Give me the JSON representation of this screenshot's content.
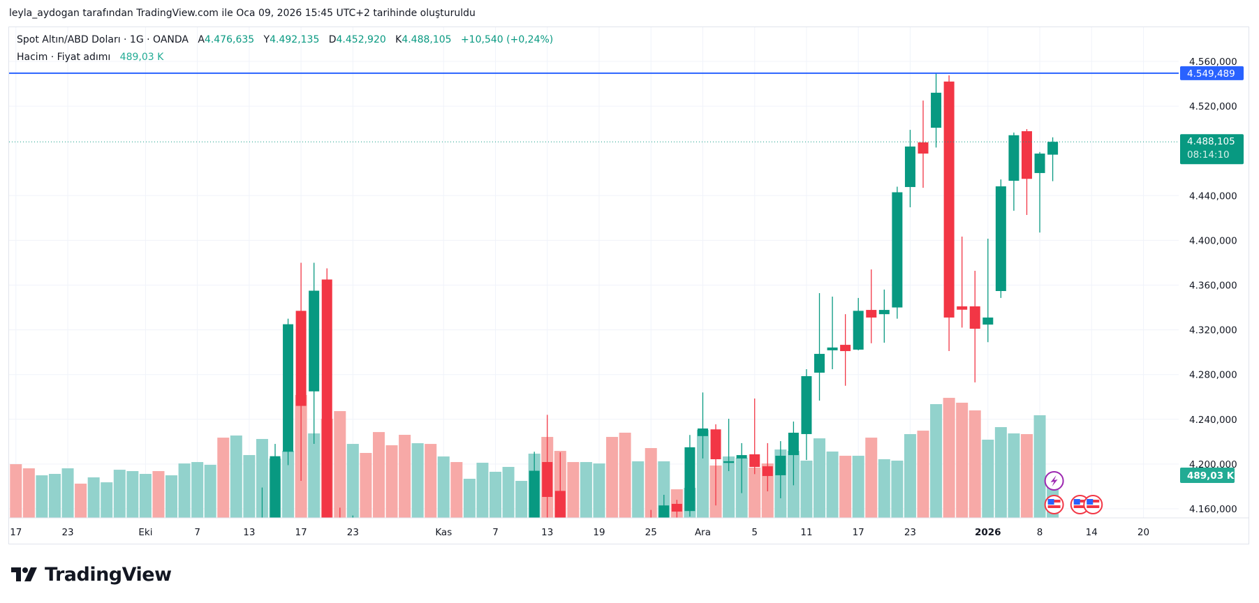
{
  "title": "leyla_aydogan tarafından TradingView.com ile Oca 09, 2026 15:45 UTC+2 tarihinde oluşturuldu",
  "header": {
    "symbol": "Spot Altın/ABD Doları · 1G · OANDA",
    "open_label": "A",
    "open": "4.476,635",
    "high_label": "Y",
    "high": "4.492,135",
    "low_label": "D",
    "low": "4.452,920",
    "close_label": "K",
    "close": "4.488,105",
    "change": "+10,540 (+0,24%)",
    "volume_label": "Hacim · Fiyat adımı",
    "volume_value": "489,03 K"
  },
  "price_axis": {
    "ticks": [
      "4.560,000",
      "4.520,000",
      "4.440,000",
      "4.400,000",
      "4.360,000",
      "4.320,000",
      "4.280,000",
      "4.240,000",
      "4.200,000",
      "4.160,000"
    ],
    "tick_values": [
      4560,
      4520,
      4440,
      4400,
      4360,
      4320,
      4280,
      4240,
      4200,
      4160
    ],
    "horizontal_line": {
      "value": 4549.489,
      "label": "4.549,489",
      "color": "#2962ff"
    },
    "last_price": {
      "value": 4488.105,
      "label": "4.488,105",
      "countdown": "08:14:10",
      "color": "#089981"
    },
    "volume_badge": {
      "label": "489,03 K",
      "color": "#22ab94"
    }
  },
  "time_axis": {
    "ticks": [
      {
        "label": "17",
        "bar": 0
      },
      {
        "label": "23",
        "bar": 4
      },
      {
        "label": "Eki",
        "bar": 10
      },
      {
        "label": "7",
        "bar": 14
      },
      {
        "label": "13",
        "bar": 18
      },
      {
        "label": "17",
        "bar": 22
      },
      {
        "label": "23",
        "bar": 26
      },
      {
        "label": "Kas",
        "bar": 33
      },
      {
        "label": "7",
        "bar": 37
      },
      {
        "label": "13",
        "bar": 41
      },
      {
        "label": "19",
        "bar": 45
      },
      {
        "label": "25",
        "bar": 49
      },
      {
        "label": "Ara",
        "bar": 53
      },
      {
        "label": "5",
        "bar": 57
      },
      {
        "label": "11",
        "bar": 61
      },
      {
        "label": "17",
        "bar": 65
      },
      {
        "label": "23",
        "bar": 69
      },
      {
        "label": "2026",
        "bar": 75,
        "bold": true
      },
      {
        "label": "8",
        "bar": 79
      },
      {
        "label": "14",
        "bar": 83
      },
      {
        "label": "20",
        "bar": 87
      }
    ]
  },
  "events": [
    {
      "icon": "lightning-icon",
      "bar": 80,
      "row": 0,
      "color": "#9c27b0"
    },
    {
      "icon": "us-flag-icon",
      "bar": 80,
      "row": 1
    },
    {
      "icon": "us-flag-icon",
      "bar": 82,
      "row": 1
    },
    {
      "icon": "us-flag-icon",
      "bar": 83,
      "row": 1
    }
  ],
  "branding": "TradingView",
  "chart_data": {
    "type": "candlestick",
    "price_range": [
      4145,
      4590
    ],
    "grid": true,
    "colors": {
      "up": "#089981",
      "down": "#f23645",
      "volume_up": "#92d2cc",
      "volume_down": "#f7a9a7"
    },
    "ohlc": [
      null,
      null,
      null,
      null,
      null,
      null,
      null,
      null,
      null,
      null,
      null,
      null,
      null,
      null,
      null,
      null,
      null,
      null,
      null,
      [
        4110,
        4179,
        4100,
        4142
      ],
      [
        4142,
        4218,
        4140,
        4207
      ],
      [
        4211,
        4330,
        4199,
        4325
      ],
      [
        4337,
        4380,
        4185,
        4252
      ],
      [
        4265,
        4380,
        4218,
        4355
      ],
      [
        4365,
        4375,
        4120,
        4130
      ],
      [
        4140,
        4161,
        4050,
        4100
      ],
      [
        4100,
        4154,
        4060,
        4120
      ],
      null,
      null,
      null,
      null,
      null,
      null,
      null,
      null,
      null,
      null,
      null,
      null,
      null,
      [
        4100,
        4211,
        4090,
        4194
      ],
      [
        4201.8,
        4244,
        4150,
        4170.6
      ],
      [
        4176,
        4210.5,
        4040,
        4080
      ],
      null,
      null,
      null,
      null,
      null,
      null,
      [
        4120,
        4159,
        4050,
        4080
      ],
      [
        4100,
        4172.5,
        4090,
        4163
      ],
      [
        4164.4,
        4168,
        4140,
        4157.5
      ],
      [
        4158,
        4226,
        4153,
        4215
      ],
      [
        4225,
        4264,
        4205,
        4231.8
      ],
      [
        4231,
        4235.5,
        4163,
        4204.3
      ],
      [
        4201,
        4240.5,
        4193.7,
        4202.5
      ],
      [
        4205,
        4218.7,
        4174,
        4208
      ],
      [
        4208.7,
        4258.6,
        4191,
        4197.4
      ],
      [
        4198,
        4218.7,
        4175.6,
        4189.3
      ],
      [
        4190,
        4220.5,
        4169.4,
        4207.4
      ],
      [
        4208,
        4238,
        4181,
        4228
      ],
      [
        4226.8,
        4284.8,
        4203.7,
        4278.6
      ],
      [
        4281.7,
        4352.8,
        4256.7,
        4298.5
      ],
      [
        4301.7,
        4349.7,
        4284.8,
        4304.2
      ],
      [
        4306.6,
        4334,
        4270,
        4301
      ],
      [
        4302.3,
        4348.5,
        4301.7,
        4337
      ],
      [
        4337.8,
        4374,
        4308,
        4331
      ],
      [
        4334,
        4356,
        4308.5,
        4337.8
      ],
      [
        4340,
        4448,
        4330,
        4443
      ],
      [
        4447.7,
        4498.8,
        4429.6,
        4483.9
      ],
      [
        4487.6,
        4525,
        4447,
        4477.6
      ],
      [
        4500.7,
        4549.4,
        4483,
        4532
      ],
      [
        4542,
        4547.5,
        4301,
        4331
      ],
      [
        4341,
        4403.4,
        4322,
        4338
      ],
      [
        4341,
        4372.8,
        4273,
        4321
      ],
      [
        4324.7,
        4401.5,
        4309,
        4331
      ],
      [
        4354.7,
        4454.5,
        4348.5,
        4448.3
      ],
      [
        4453.3,
        4496.4,
        4426.5,
        4494
      ],
      [
        4497.6,
        4499.5,
        4422.7,
        4455
      ],
      [
        4460.2,
        4479,
        4407,
        4477.6
      ],
      [
        4476.635,
        4492.135,
        4452.92,
        4488.105
      ]
    ],
    "volume_k": [
      684,
      631,
      542,
      560,
      631,
      436,
      516,
      453,
      613,
      596,
      560,
      596,
      542,
      693,
      711,
      676,
      1022,
      1049,
      800,
      1005,
      756,
      853,
      1565,
      1076,
      1262,
      1360,
      942,
      827,
      1093,
      925,
      1058,
      951,
      942,
      782,
      711,
      498,
      702,
      587,
      649,
      471,
      818,
      1031,
      853,
      711,
      711,
      693,
      1031,
      1085,
      720,
      889,
      720,
      364,
      382,
      1120,
      667,
      782,
      765,
      640,
      693,
      871,
      853,
      729,
      1013,
      845,
      791,
      791,
      1022,
      747,
      729,
      1067,
      1111,
      1449,
      1529,
      1467,
      1369,
      996,
      1156,
      1076,
      1067,
      1307,
      489.03
    ],
    "volume_dir": [
      "down",
      "down",
      "up",
      "up",
      "up",
      "down",
      "up",
      "up",
      "up",
      "up",
      "up",
      "down",
      "up",
      "up",
      "up",
      "up",
      "down",
      "up",
      "up",
      "up",
      "up",
      "up",
      "down",
      "up",
      "down",
      "down",
      "up",
      "down",
      "down",
      "down",
      "down",
      "up",
      "down",
      "up",
      "down",
      "up",
      "up",
      "up",
      "up",
      "up",
      "up",
      "down",
      "down",
      "down",
      "up",
      "up",
      "down",
      "down",
      "up",
      "down",
      "up",
      "down",
      "up",
      "up",
      "down",
      "up",
      "up",
      "down",
      "down",
      "up",
      "up",
      "up",
      "up",
      "up",
      "down",
      "up",
      "down",
      "up",
      "up",
      "up",
      "down",
      "up",
      "down",
      "down",
      "down",
      "up",
      "up",
      "up",
      "down",
      "up",
      "up"
    ]
  }
}
